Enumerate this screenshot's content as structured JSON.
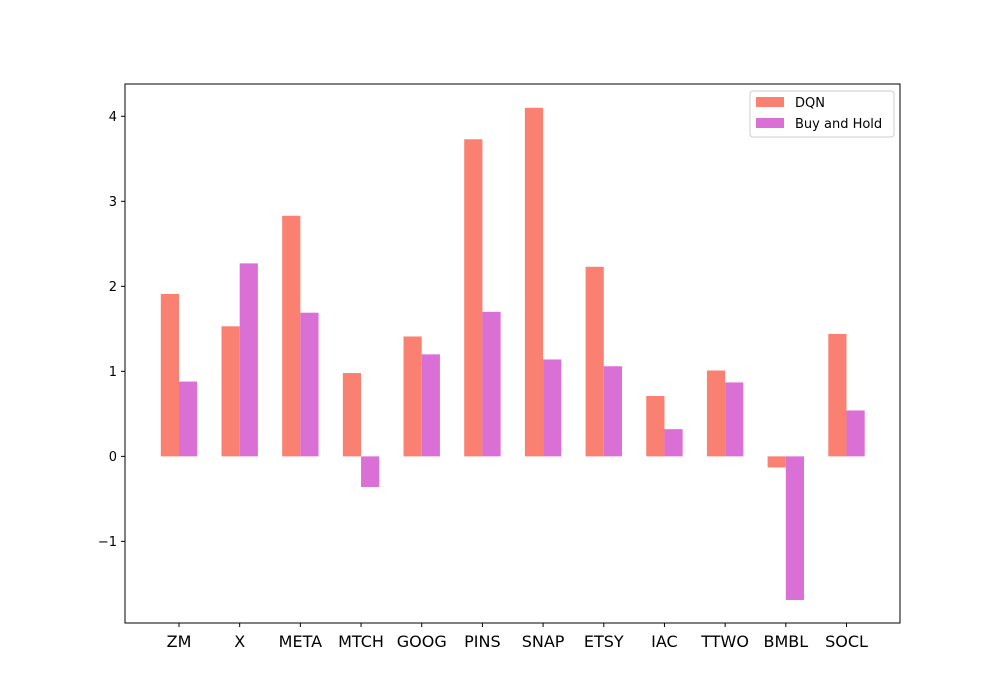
{
  "chart_data": {
    "type": "bar",
    "categories": [
      "ZM",
      "X",
      "META",
      "MTCH",
      "GOOG",
      "PINS",
      "SNAP",
      "ETSY",
      "IAC",
      "TTWO",
      "BMBL",
      "SOCL"
    ],
    "series": [
      {
        "name": "DQN",
        "color": "#fa8072",
        "values": [
          1.91,
          1.53,
          2.83,
          0.98,
          1.41,
          3.73,
          4.1,
          2.23,
          0.71,
          1.01,
          -0.13,
          1.44
        ]
      },
      {
        "name": "Buy and Hold",
        "color": "#da70d6",
        "values": [
          0.88,
          2.27,
          1.69,
          -0.36,
          1.2,
          1.7,
          1.14,
          1.06,
          0.32,
          0.87,
          -1.69,
          0.54
        ]
      }
    ],
    "y_ticks": [
      -1,
      0,
      1,
      2,
      3,
      4
    ],
    "ylim": [
      -1.96,
      4.38
    ],
    "legend_position": "top-right",
    "grid": false
  }
}
